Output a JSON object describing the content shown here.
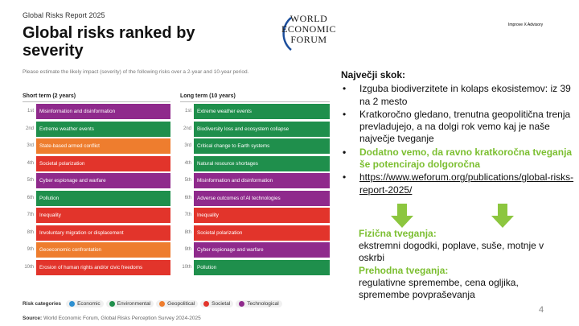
{
  "slide": {
    "report_label": "Global Risks Report 2025",
    "title": "Global risks ranked by severity",
    "subtitle": "Please estimate the likely impact (severity) of the following risks over a 2-year and 10-year period.",
    "short_term": {
      "heading": "Short term (2 years)",
      "items": [
        {
          "rank": "1st",
          "label": "Misinformation and disinformation",
          "category": "Technological"
        },
        {
          "rank": "2nd",
          "label": "Extreme weather events",
          "category": "Environmental"
        },
        {
          "rank": "3rd",
          "label": "State-based armed conflict",
          "category": "Geopolitical"
        },
        {
          "rank": "4th",
          "label": "Societal polarization",
          "category": "Societal"
        },
        {
          "rank": "5th",
          "label": "Cyber espionage and warfare",
          "category": "Technological"
        },
        {
          "rank": "6th",
          "label": "Pollution",
          "category": "Environmental"
        },
        {
          "rank": "7th",
          "label": "Inequality",
          "category": "Societal"
        },
        {
          "rank": "8th",
          "label": "Involuntary migration or displacement",
          "category": "Societal"
        },
        {
          "rank": "9th",
          "label": "Geoeconomic confrontation",
          "category": "Geopolitical"
        },
        {
          "rank": "10th",
          "label": "Erosion of human rights and/or civic freedoms",
          "category": "Societal"
        }
      ]
    },
    "long_term": {
      "heading": "Long term (10 years)",
      "items": [
        {
          "rank": "1st",
          "label": "Extreme weather events",
          "category": "Environmental"
        },
        {
          "rank": "2nd",
          "label": "Biodiversity loss and ecosystem collapse",
          "category": "Environmental"
        },
        {
          "rank": "3rd",
          "label": "Critical change to Earth systems",
          "category": "Environmental"
        },
        {
          "rank": "4th",
          "label": "Natural resource shortages",
          "category": "Environmental"
        },
        {
          "rank": "5th",
          "label": "Misinformation and disinformation",
          "category": "Technological"
        },
        {
          "rank": "6th",
          "label": "Adverse outcomes of AI technologies",
          "category": "Technological"
        },
        {
          "rank": "7th",
          "label": "Inequality",
          "category": "Societal"
        },
        {
          "rank": "8th",
          "label": "Societal polarization",
          "category": "Societal"
        },
        {
          "rank": "9th",
          "label": "Cyber espionage and warfare",
          "category": "Technological"
        },
        {
          "rank": "10th",
          "label": "Pollution",
          "category": "Environmental"
        }
      ]
    },
    "legend_title": "Risk categories",
    "categories": [
      {
        "name": "Economic",
        "color": "#2e90d1"
      },
      {
        "name": "Environmental",
        "color": "#1f8f4c"
      },
      {
        "name": "Geopolitical",
        "color": "#ee7d2e"
      },
      {
        "name": "Societal",
        "color": "#e2342b"
      },
      {
        "name": "Technological",
        "color": "#8f2a8c"
      }
    ],
    "source_label": "Source:",
    "source_text": "World Economic Forum, Global Risks Perception Survey 2024-2025",
    "logo_text": "WORLD\nECONOMIC\nFORUM",
    "advisory": "Improve X Advisory",
    "notes_heading": "Največji skok:",
    "bullets": [
      {
        "text": "Izguba biodiverzitete in kolaps ekosistemov: iz 39 na 2 mesto",
        "style": "normal"
      },
      {
        "text": "Kratkoročno gledano, trenutna geopolitična trenja prevladujejo, a na dolgi rok vemo kaj je naše največje tveganje",
        "style": "normal"
      },
      {
        "text": "Dodatno vemo, da ravno kratkoročna tveganja še potencirajo dolgoročna",
        "style": "green"
      },
      {
        "text": "https://www.weforum.org/publications/global-risks-report-2025/",
        "style": "link"
      }
    ],
    "physical_heading": "Fizična tveganja:",
    "physical_text": "ekstremni dogodki, poplave, suše, motnje v oskrbi",
    "transition_heading": "Prehodna tveganja:",
    "transition_text": "regulativne spremembe, cena ogljika, spremembe povpraševanja",
    "page_number": "4",
    "arrow_color": "#8cc63f"
  }
}
